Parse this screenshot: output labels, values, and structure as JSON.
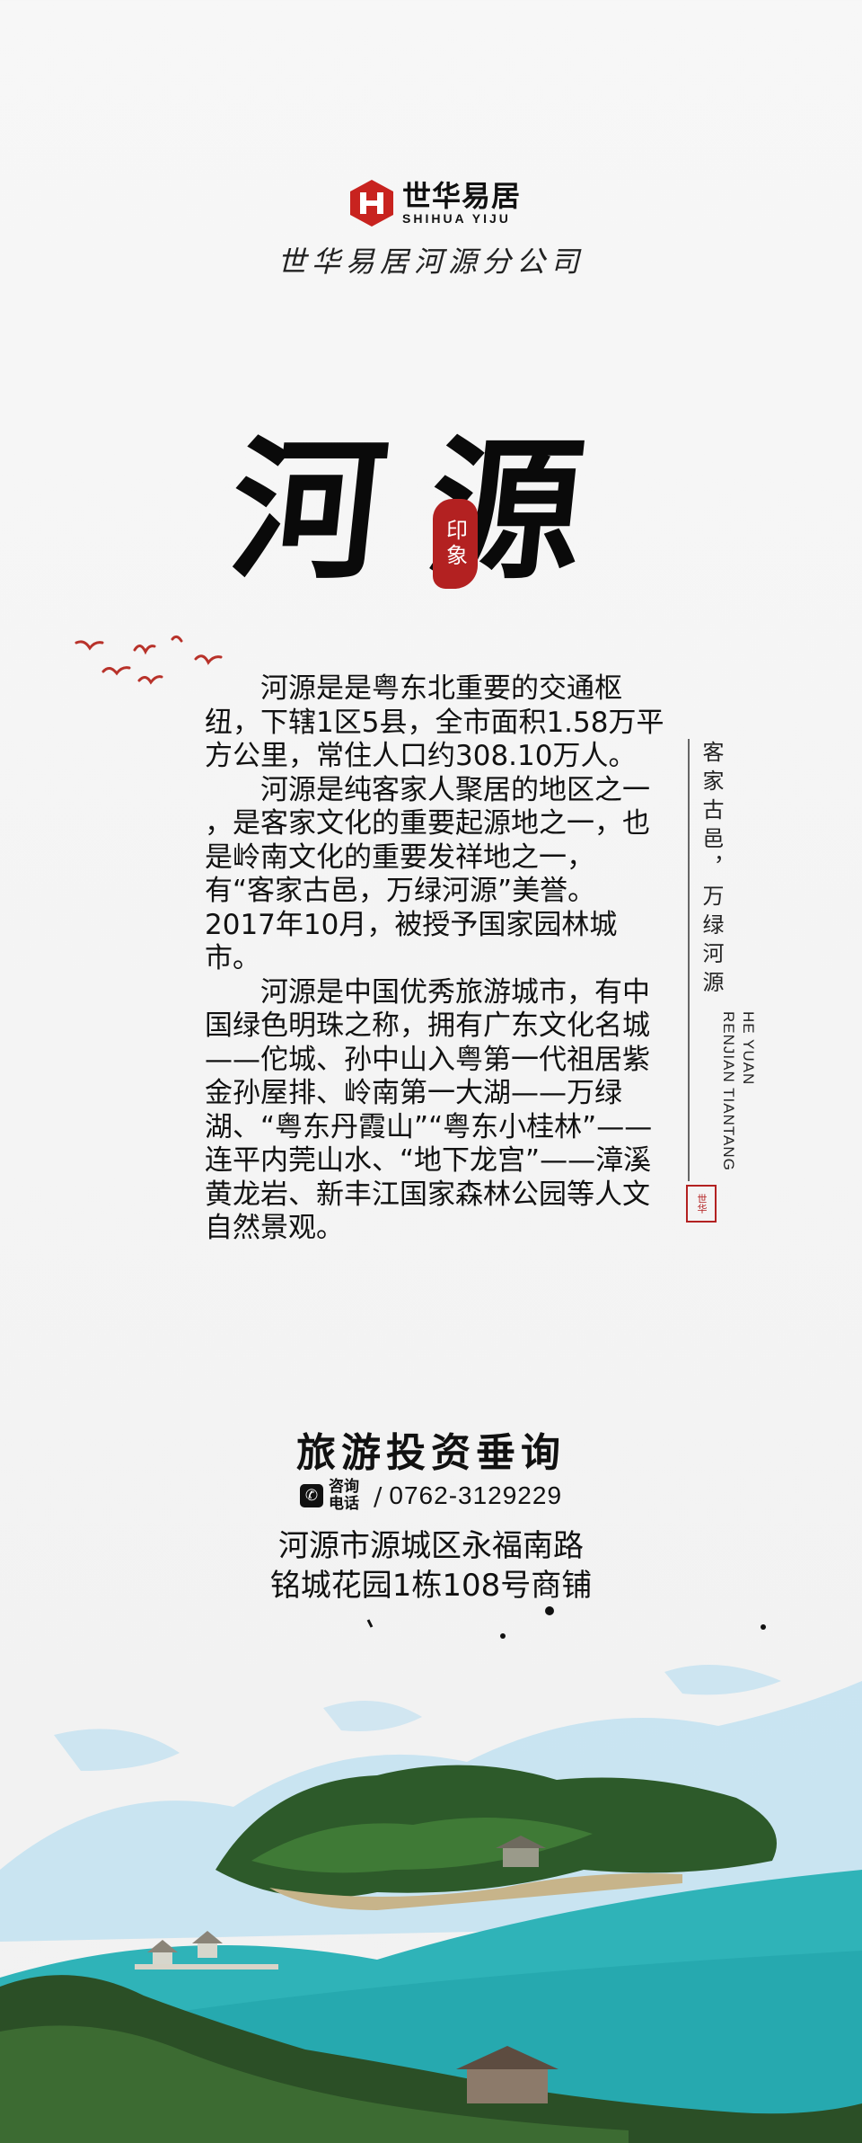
{
  "brand": {
    "name_cn": "世华易居",
    "name_en": "SHIHUA YIJU",
    "branch": "世华易居河源分公司"
  },
  "title": {
    "main": "河源",
    "seal": "印象"
  },
  "body": {
    "paragraphs": [
      "　　河源是是粤东北重要的交通枢纽，下辖1区5县，全市面积1.58万平方公里，常住人口约308.10万人。",
      "　　河源是纯客家人聚居的地区之一 ，是客家文化的重要起源地之一，也是岭南文化的重要发祥地之一，有“客家古邑，万绿河源”美誉。2017年10月，被授予国家园林城市。",
      "　　河源是中国优秀旅游城市，有中国绿色明珠之称，拥有广东文化名城——佗城、孙中山入粤第一代祖居紫金孙屋排、岭南第一大湖——万绿湖、“粤东丹霞山”“粤东小桂林”——连平内莞山水、“地下龙宫”——漳溪黄龙岩、新丰江国家森林公园等人文自然景观。"
    ]
  },
  "side": {
    "slogan": "客家古邑，万绿河源",
    "en_line1": "HE YUAN",
    "en_line2": "RENJIAN TIANTANG",
    "seal": "世华"
  },
  "contact": {
    "title": "旅游投资垂询",
    "phone_label": "咨询电话",
    "phone": "0762-3129229",
    "address_line1": "河源市源城区永福南路",
    "address_line2": "铭城花园1栋108号商铺"
  },
  "colors": {
    "seal_red": "#b32121",
    "lake": "#2fb3b8",
    "forest": "#2d5a2a",
    "splash": "#9fd3ee"
  }
}
